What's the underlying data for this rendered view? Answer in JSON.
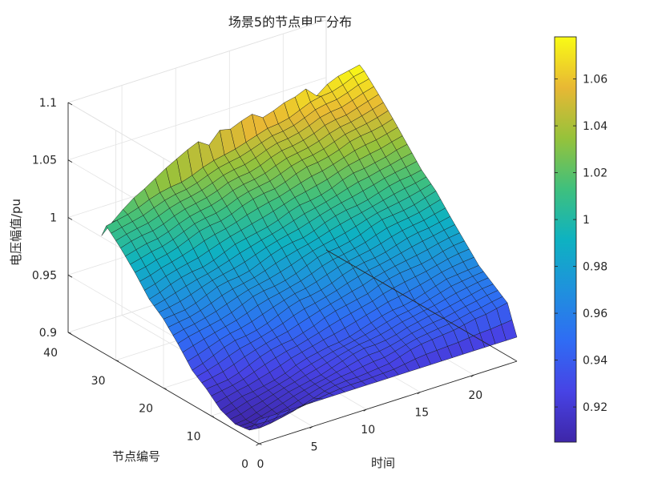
{
  "chart_data": {
    "type": "surface",
    "title": "场景5的节点电压分布",
    "xlabel": "时间",
    "ylabel": "节点编号",
    "zlabel": "电压幅值/pu",
    "xlim": [
      0,
      24
    ],
    "ylim": [
      0,
      40
    ],
    "zlim": [
      0.9,
      1.1
    ],
    "xticks": [
      "0",
      "5",
      "10",
      "15",
      "20"
    ],
    "yticks": [
      "0",
      "10",
      "20",
      "30",
      "40"
    ],
    "zticks": [
      "0.9",
      "0.95",
      "1",
      "1.05",
      "1.1"
    ],
    "grid": true,
    "colormap": "parula",
    "clim": [
      0.905,
      1.078
    ],
    "colorbar_ticks": [
      "0.92",
      "0.94",
      "0.96",
      "0.98",
      "1",
      "1.02",
      "1.04",
      "1.06"
    ],
    "time": [
      0,
      24
    ],
    "nodes": [
      0,
      33
    ],
    "series": [
      {
        "node": 0,
        "values": [
          0.921,
          0.921,
          0.921,
          0.921,
          0.921,
          0.921,
          0.921,
          0.921,
          0.921,
          0.921,
          0.921,
          0.921,
          0.921,
          0.921,
          0.921,
          0.921,
          0.921,
          0.921,
          0.921,
          0.921,
          0.921,
          0.921,
          0.921,
          0.921,
          0.921
        ]
      },
      {
        "node": 2,
        "values": [
          0.907,
          0.906,
          0.907,
          0.909,
          0.911,
          0.914,
          0.917,
          0.92,
          0.922,
          0.923,
          0.923,
          0.924,
          0.925,
          0.926,
          0.929,
          0.932,
          0.934,
          0.935,
          0.936,
          0.937,
          0.939,
          0.941,
          0.942,
          0.944,
          0.946
        ]
      },
      {
        "node": 5,
        "values": [
          0.905,
          0.906,
          0.909,
          0.912,
          0.915,
          0.918,
          0.92,
          0.922,
          0.924,
          0.927,
          0.93,
          0.933,
          0.935,
          0.935,
          0.936,
          0.938,
          0.941,
          0.943,
          0.945,
          0.946,
          0.948,
          0.95,
          0.952,
          0.954,
          0.955
        ]
      },
      {
        "node": 8,
        "values": [
          0.91,
          0.913,
          0.916,
          0.917,
          0.919,
          0.921,
          0.924,
          0.928,
          0.931,
          0.933,
          0.935,
          0.936,
          0.938,
          0.941,
          0.944,
          0.947,
          0.949,
          0.95,
          0.952,
          0.955,
          0.958,
          0.961,
          0.962,
          0.963,
          0.964
        ]
      },
      {
        "node": 11,
        "values": [
          0.921,
          0.922,
          0.923,
          0.926,
          0.93,
          0.934,
          0.937,
          0.939,
          0.94,
          0.943,
          0.946,
          0.95,
          0.953,
          0.955,
          0.957,
          0.959,
          0.963,
          0.966,
          0.968,
          0.969,
          0.97,
          0.972,
          0.975,
          0.977,
          0.978
        ]
      },
      {
        "node": 14,
        "values": [
          0.93,
          0.933,
          0.937,
          0.941,
          0.944,
          0.945,
          0.947,
          0.95,
          0.954,
          0.958,
          0.961,
          0.962,
          0.964,
          0.967,
          0.971,
          0.974,
          0.976,
          0.977,
          0.979,
          0.982,
          0.985,
          0.987,
          0.988,
          0.99,
          0.992
        ]
      },
      {
        "node": 17,
        "values": [
          0.946,
          0.949,
          0.951,
          0.953,
          0.955,
          0.958,
          0.962,
          0.966,
          0.968,
          0.969,
          0.971,
          0.974,
          0.978,
          0.982,
          0.984,
          0.985,
          0.987,
          0.99,
          0.994,
          0.997,
          0.998,
          0.999,
          1.001,
          1.004,
          1.007
        ]
      },
      {
        "node": 20,
        "values": [
          0.96,
          0.961,
          0.962,
          0.965,
          0.969,
          0.973,
          0.975,
          0.976,
          0.978,
          0.982,
          0.986,
          0.989,
          0.991,
          0.992,
          0.995,
          0.999,
          1.002,
          1.004,
          1.005,
          1.007,
          1.01,
          1.013,
          1.015,
          1.016,
          1.018
        ]
      },
      {
        "node": 23,
        "values": [
          0.97,
          0.973,
          0.977,
          0.98,
          0.982,
          0.983,
          0.986,
          0.99,
          0.994,
          0.996,
          0.998,
          1.0,
          1.003,
          1.007,
          1.01,
          1.011,
          1.013,
          1.016,
          1.02,
          1.023,
          1.024,
          1.026,
          1.028,
          1.031,
          1.033
        ]
      },
      {
        "node": 26,
        "values": [
          0.986,
          0.988,
          0.991,
          0.993,
          0.996,
          1.0,
          1.004,
          1.006,
          1.007,
          1.01,
          1.014,
          1.017,
          1.019,
          1.02,
          1.023,
          1.027,
          1.03,
          1.031,
          1.033,
          1.036,
          1.04,
          1.042,
          1.043,
          1.045,
          1.048
        ]
      },
      {
        "node": 29,
        "values": [
          1.0,
          1.003,
          1.005,
          1.006,
          1.009,
          1.013,
          1.016,
          1.018,
          1.02,
          1.023,
          1.027,
          1.029,
          1.03,
          1.033,
          1.037,
          1.04,
          1.041,
          1.043,
          1.046,
          1.05,
          1.052,
          1.053,
          1.056,
          1.059,
          1.062
        ]
      },
      {
        "node": 32,
        "values": [
          1.012,
          1.014,
          1.016,
          1.019,
          1.023,
          1.026,
          1.028,
          1.029,
          1.032,
          1.036,
          1.039,
          1.041,
          1.043,
          1.046,
          1.049,
          1.052,
          1.053,
          1.055,
          1.059,
          1.063,
          1.065,
          1.066,
          1.069,
          1.073,
          1.075
        ]
      },
      {
        "node": 33,
        "values": [
          1.001,
          1.01,
          1.018,
          1.025,
          1.03,
          1.036,
          1.042,
          1.047,
          1.052,
          1.056,
          1.05,
          1.06,
          1.058,
          1.062,
          1.065,
          1.059,
          1.062,
          1.066,
          1.068,
          1.072,
          1.063,
          1.07,
          1.074,
          1.076,
          1.078
        ]
      }
    ]
  }
}
